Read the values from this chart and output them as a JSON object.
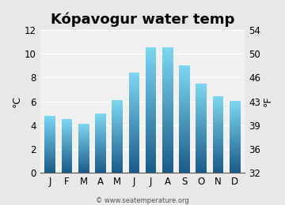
{
  "title": "Kópavogur water temp",
  "months": [
    "J",
    "F",
    "M",
    "A",
    "M",
    "J",
    "J",
    "A",
    "S",
    "O",
    "N",
    "D"
  ],
  "values_c": [
    4.8,
    4.5,
    4.1,
    5.0,
    6.1,
    8.4,
    10.5,
    10.5,
    9.0,
    7.5,
    6.4,
    6.0
  ],
  "ylim_c": [
    0,
    12
  ],
  "yticks_c": [
    0,
    2,
    4,
    6,
    8,
    10,
    12
  ],
  "yticks_f": [
    32,
    36,
    39,
    43,
    46,
    50,
    54
  ],
  "ylabel_left": "°C",
  "ylabel_right": "°F",
  "bar_color_top": "#7dd6f0",
  "bar_color_bottom": "#1a5a8a",
  "background_color": "#e8e8e8",
  "plot_bg_color": "#f0f0f0",
  "watermark": "© www.seatemperature.org",
  "title_fontsize": 13,
  "axis_fontsize": 9,
  "tick_fontsize": 8.5
}
